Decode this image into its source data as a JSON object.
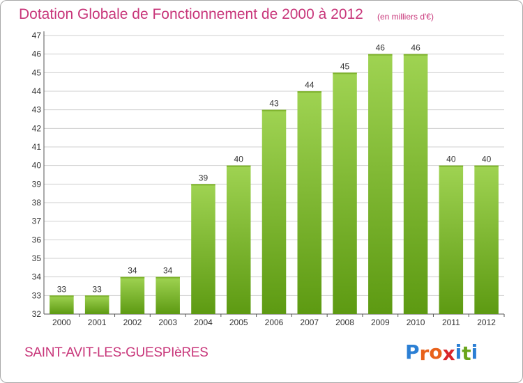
{
  "header": {
    "title": "Dotation Globale de Fonctionnement de 2000 à 2012",
    "subtitle": "(en milliers d'€)"
  },
  "footer": {
    "commune": "SAINT-AVIT-LES-GUESPIèRES",
    "brand": "Proxiti"
  },
  "colors": {
    "title": "#c8367a",
    "bar_light": "#9fd352",
    "bar_dark": "#5d9a12",
    "grid": "#cfcfcf",
    "axis": "#555555",
    "logo_letters": [
      "#2b7fd4",
      "#e8611a",
      "#e8611a",
      "#d9252a",
      "#2b7fd4",
      "#6aa51c",
      "#2b7fd4"
    ]
  },
  "chart_data": {
    "type": "bar",
    "title": "Dotation Globale de Fonctionnement de 2000 à 2012",
    "subtitle": "(en milliers d'€)",
    "categories": [
      "2000",
      "2001",
      "2002",
      "2003",
      "2004",
      "2005",
      "2006",
      "2007",
      "2008",
      "2009",
      "2010",
      "2011",
      "2012"
    ],
    "values": [
      33,
      33,
      34,
      34,
      39,
      40,
      43,
      44,
      45,
      46,
      46,
      40,
      40
    ],
    "ylim": [
      32,
      47
    ],
    "yticks": [
      32,
      33,
      34,
      35,
      36,
      37,
      38,
      39,
      40,
      41,
      42,
      43,
      44,
      45,
      46,
      47
    ],
    "grid": true,
    "legend": "none"
  }
}
